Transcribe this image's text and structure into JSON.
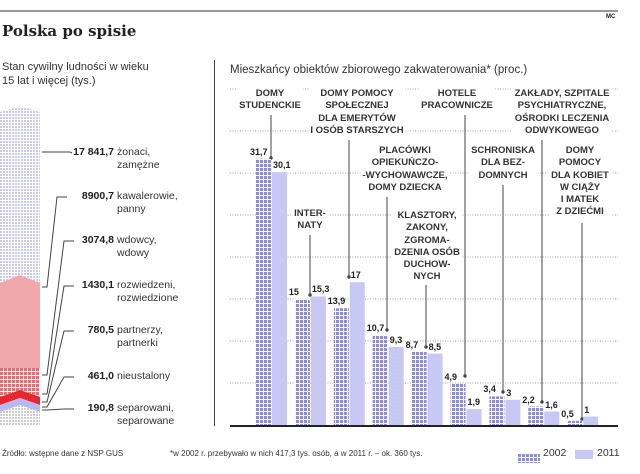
{
  "title": "Polska po spisie",
  "credit": "MC",
  "left_panel": {
    "subtitle_lines": [
      "Stan cywilny ludności w wieku",
      "15 lat i więcej (tys.)"
    ],
    "items": [
      {
        "value": "17 841,7",
        "label": [
          "żonaci,",
          "zamężne"
        ]
      },
      {
        "value": "8900,7",
        "label": [
          "kawalerowie,",
          "panny"
        ]
      },
      {
        "value": "3074,8",
        "label": [
          "wdowcy,",
          "wdowy"
        ]
      },
      {
        "value": "1430,1",
        "label": [
          "rozwiedzeni,",
          "rozwiedzione"
        ]
      },
      {
        "value": "780,5",
        "label": [
          "partnerzy,",
          "partnerki"
        ]
      },
      {
        "value": "461,0",
        "label": [
          "nieustalony"
        ]
      },
      {
        "value": "190,8",
        "label": [
          "separowani,",
          "separowane"
        ]
      }
    ],
    "colors": {
      "married": "#c9c9f5",
      "single": "#f0a8ac",
      "widowed": "#f26a6e",
      "divorced": "#e8262d",
      "partners": "#b7b7f2",
      "unknown": "#d8d8d8"
    }
  },
  "chart_data": {
    "type": "bar",
    "title": "Mieszkańcy obiektów zbiorowego zakwaterowania* (proc.)",
    "categories": [
      "DOMY STUDENCKIE",
      "INTERNATY",
      "DOMY POMOCY SPOŁECZNEJ DLA EMERYTÓW I OSÓB STARSZYCH",
      "PLACÓWKI OPIEKUŃCZO-WYCHOWAWCZE, DOMY DZIECKA",
      "KLASZTORY, ZAKONY, ZGROMADZENIA OSÓB DUCHOWNYCH",
      "HOTELE PRACOWNICZE",
      "SCHRONISKA DLA BEZDOMNYCH",
      "ZAKŁADY, SZPITALE PSYCHIATRYCZNE, OŚRODKI LECZENIA ODWYKOWEGO",
      "DOMY POMOCY DLA KOBIET W CIĄŻY I MATEK Z DZIEĆMI"
    ],
    "category_label_lines": [
      [
        "DOMY",
        "STUDENCKIE"
      ],
      [
        "INTER-",
        "NATY"
      ],
      [
        "DOMY POMOCY",
        "SPOŁECZNEJ",
        "DLA EMERYTÓW",
        "I OSÓB STARSZYCH"
      ],
      [
        "PLACÓWKI",
        "OPIEKUŃCZO-",
        "-WYCHOWAWCZE,",
        "DOMY DZIECKA"
      ],
      [
        "KLASZTORY,",
        "ZAKONY,",
        "ZGROMA-",
        "DZENIA OSÓB",
        "DUCHOW-",
        "NYCH"
      ],
      [
        "HOTELE",
        "PRACOWNICZE"
      ],
      [
        "SCHRONISKA",
        "DLA BEZ-",
        "DOMNYCH"
      ],
      [
        "ZAKŁADY, SZPITALE",
        "PSYCHIATRYCZNE,",
        "OŚRODKI LECZENIA",
        "ODWYKOWEGO"
      ],
      [
        "DOMY",
        "POMOCY",
        "DLA KOBIET",
        "W CIĄŻY",
        "I MATEK",
        "Z DZIEĆMI"
      ]
    ],
    "series": [
      {
        "name": "2002",
        "values": [
          31.7,
          15,
          13.9,
          10.7,
          8.7,
          4.9,
          3.4,
          2.2,
          0.5
        ],
        "labels": [
          "31,7",
          "15",
          "13,9",
          "10,7",
          "8,7",
          "4,9",
          "3,4",
          "2,2",
          "0,5"
        ],
        "color": "#8a8ae8"
      },
      {
        "name": "2011",
        "values": [
          30.1,
          15.3,
          17,
          9.3,
          8.5,
          1.9,
          3,
          1.6,
          1
        ],
        "labels": [
          "30,1",
          "15,3",
          "17",
          "9,3",
          "8,5",
          "1,9",
          "3",
          "1,6",
          "1"
        ],
        "color": "#c8c8f5"
      }
    ],
    "ylim": [
      0,
      40
    ],
    "grid": true,
    "legend": "bottom-right"
  },
  "footer": {
    "source": "Źródło: wstępne dane z NSP GUS",
    "note": "*w 2002 r. przebywało w nich 417,3 tys. osób, a w 2011 r. – ok. 360 tys."
  }
}
